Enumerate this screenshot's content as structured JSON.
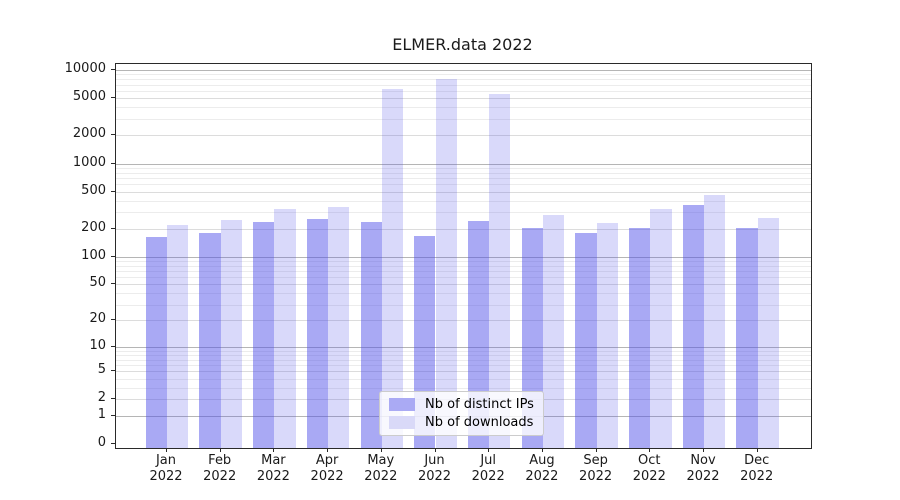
{
  "title": "ELMER.data 2022",
  "chart_data": {
    "type": "bar",
    "title": "ELMER.data 2022",
    "xlabel": "",
    "ylabel": "",
    "yscale": "log10(value+1)",
    "ylim": [
      0,
      11600
    ],
    "grid": true,
    "legend_position": "lower center",
    "yticks": [
      10000,
      5000,
      2000,
      1000,
      500,
      200,
      100,
      50,
      20,
      10,
      5,
      2,
      1,
      0
    ],
    "categories": [
      "Jan 2022",
      "Feb 2022",
      "Mar 2022",
      "Apr 2022",
      "May 2022",
      "Jun 2022",
      "Jul 2022",
      "Aug 2022",
      "Sep 2022",
      "Oct 2022",
      "Nov 2022",
      "Dec 2022"
    ],
    "series": [
      {
        "name": "Nb of distinct IPs",
        "color": "#aaaaf4",
        "fill_rgba": "rgba(80,80,232,0.49)",
        "values": [
          162,
          181,
          238,
          255,
          235,
          167,
          242,
          205,
          182,
          201,
          360,
          205
        ]
      },
      {
        "name": "Nb of downloads",
        "color": "#d9d9f8",
        "fill_rgba": "rgba(80,80,232,0.215)",
        "values": [
          220,
          246,
          327,
          344,
          6300,
          8070,
          5580,
          281,
          232,
          323,
          463,
          263
        ]
      }
    ]
  },
  "legend": {
    "items": [
      {
        "label": "Nb of distinct IPs",
        "color": "#aaaaf4"
      },
      {
        "label": "Nb of downloads",
        "color": "#d9d9f8"
      }
    ]
  },
  "colors": {
    "background": "#ffffff",
    "grid_major": "#b5b5b5",
    "grid_mid": "#dcdcdc",
    "grid_minor": "#ececec",
    "spine": "#2a2a2a",
    "text": "#1a1a1a"
  }
}
